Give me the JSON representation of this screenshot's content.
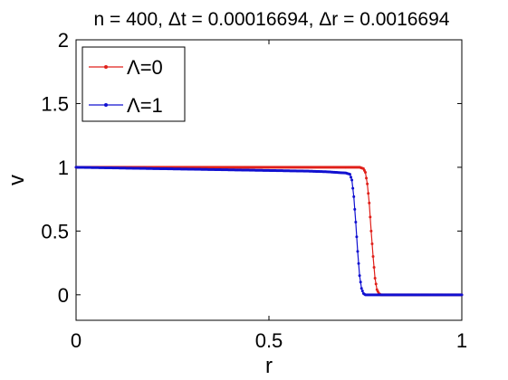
{
  "chart_data": {
    "type": "line",
    "title": "n = 400, Δt = 0.00016694, Δr = 0.0016694",
    "xlabel": "r",
    "ylabel": "v",
    "xlim": [
      0,
      1
    ],
    "ylim": [
      -0.2,
      2
    ],
    "xticks": [
      0,
      0.5,
      1
    ],
    "xtick_labels": [
      "0",
      "0.5",
      "1"
    ],
    "yticks": [
      0,
      0.5,
      1,
      1.5,
      2
    ],
    "ytick_labels": [
      "0",
      "0.5",
      "1",
      "1.5",
      "2"
    ],
    "grid": false,
    "legend_position": "top-left",
    "series": [
      {
        "name": "Λ=0",
        "color": "#e0201a",
        "marker": "dot",
        "points": [
          [
            0,
            1
          ],
          [
            0.1,
            1
          ],
          [
            0.2,
            1
          ],
          [
            0.3,
            1
          ],
          [
            0.4,
            1
          ],
          [
            0.5,
            1
          ],
          [
            0.6,
            1
          ],
          [
            0.7,
            1
          ],
          [
            0.735,
            1.0
          ],
          [
            0.745,
            0.99
          ],
          [
            0.75,
            0.96
          ],
          [
            0.755,
            0.87
          ],
          [
            0.76,
            0.72
          ],
          [
            0.765,
            0.5
          ],
          [
            0.77,
            0.3
          ],
          [
            0.775,
            0.13
          ],
          [
            0.78,
            0.04
          ],
          [
            0.785,
            0.01
          ],
          [
            0.79,
            0.0
          ],
          [
            0.85,
            0.0
          ],
          [
            0.9,
            0.0
          ],
          [
            0.95,
            0.0
          ],
          [
            1.0,
            0.0
          ]
        ]
      },
      {
        "name": "Λ=1",
        "color": "#1010d0",
        "marker": "dot",
        "points": [
          [
            0,
            1
          ],
          [
            0.1,
            0.995
          ],
          [
            0.2,
            0.99
          ],
          [
            0.3,
            0.985
          ],
          [
            0.4,
            0.98
          ],
          [
            0.5,
            0.975
          ],
          [
            0.6,
            0.97
          ],
          [
            0.65,
            0.965
          ],
          [
            0.7,
            0.955
          ],
          [
            0.71,
            0.945
          ],
          [
            0.715,
            0.9
          ],
          [
            0.72,
            0.77
          ],
          [
            0.725,
            0.57
          ],
          [
            0.73,
            0.34
          ],
          [
            0.735,
            0.15
          ],
          [
            0.74,
            0.05
          ],
          [
            0.745,
            0.01
          ],
          [
            0.75,
            0.0
          ],
          [
            0.8,
            0.0
          ],
          [
            0.9,
            0.0
          ],
          [
            1.0,
            0.0
          ]
        ]
      }
    ]
  }
}
